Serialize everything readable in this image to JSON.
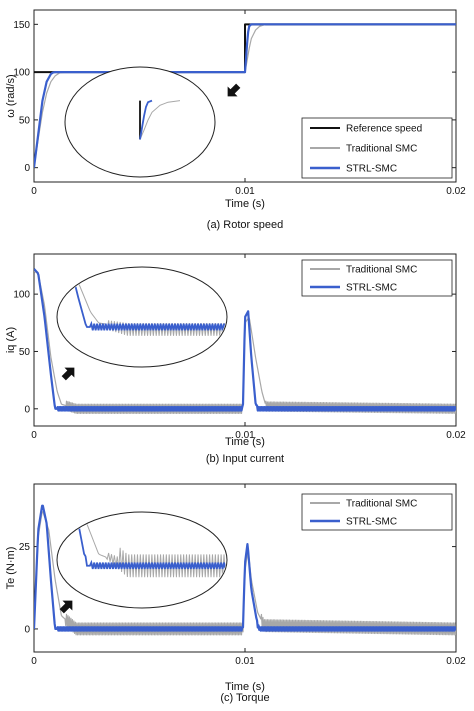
{
  "colors": {
    "reference": "#111111",
    "traditional": "#a8a8a8",
    "strl": "#3a5fcd",
    "axis": "#222222",
    "background": "#ffffff"
  },
  "icons": [
    "arrow-icon"
  ],
  "chart_data": [
    {
      "type": "line",
      "caption": "(a) Rotor speed",
      "xlabel": "Time (s)",
      "ylabel": "ω (rad/s)",
      "xlim": [
        0,
        0.02
      ],
      "ylim": [
        -15,
        165
      ],
      "xticks": [
        0,
        0.01,
        0.02
      ],
      "xtick_labels": [
        "0",
        "0.01",
        "0.02"
      ],
      "yticks": [
        0,
        50,
        100,
        150
      ],
      "ytick_labels": [
        "0",
        "50",
        "100",
        "150"
      ],
      "legend_position": "bottom-right",
      "series": [
        {
          "name": "Reference speed",
          "x": [
            0,
            0.01,
            0.01,
            0.02
          ],
          "y": [
            100,
            100,
            150,
            150
          ]
        },
        {
          "name": "Traditional SMC",
          "x": [
            0,
            0.0002,
            0.0004,
            0.0006,
            0.0008,
            0.001,
            0.0012,
            0.0015,
            0.002,
            0.01,
            0.0101,
            0.0102,
            0.0103,
            0.0105,
            0.0107,
            0.011,
            0.02
          ],
          "y": [
            0,
            30,
            58,
            78,
            90,
            96,
            99,
            100,
            100,
            100,
            112,
            125,
            135,
            144,
            148,
            150,
            150
          ]
        },
        {
          "name": "STRL-SMC",
          "x": [
            0,
            0.0002,
            0.0004,
            0.0006,
            0.0008,
            0.0009,
            0.001,
            0.002,
            0.01,
            0.01005,
            0.0101,
            0.01015,
            0.0102,
            0.0103,
            0.02
          ],
          "y": [
            0,
            35,
            70,
            90,
            98,
            99.5,
            100,
            100,
            100,
            115,
            130,
            142,
            148,
            150,
            150
          ]
        }
      ]
    },
    {
      "type": "line",
      "caption": "(b) Input current",
      "xlabel": "Time (s)",
      "ylabel": "iq (A)",
      "xlim": [
        0,
        0.02
      ],
      "ylim": [
        -15,
        135
      ],
      "xticks": [
        0,
        0.01,
        0.02
      ],
      "xtick_labels": [
        "0",
        "0.01",
        "0.02"
      ],
      "yticks": [
        0,
        50,
        100
      ],
      "ytick_labels": [
        "0",
        "50",
        "100"
      ],
      "legend_position": "top-right",
      "series": [
        {
          "name": "Traditional SMC",
          "x": [
            0,
            0.0002,
            0.0005,
            0.0008,
            0.0011,
            0.0013,
            0.002,
            0.0099,
            0.01,
            0.0102,
            0.0105,
            0.0108,
            0.011,
            0.02
          ],
          "y": [
            120,
            118,
            90,
            45,
            15,
            4,
            0,
            0,
            75,
            80,
            45,
            15,
            2,
            0
          ],
          "ripple": 4
        },
        {
          "name": "STRL-SMC",
          "x": [
            0,
            0.0002,
            0.0005,
            0.0008,
            0.001,
            0.002,
            0.0099,
            0.01,
            0.01015,
            0.0103,
            0.0105,
            0.0106,
            0.02
          ],
          "y": [
            122,
            118,
            80,
            30,
            0,
            0,
            0,
            80,
            85,
            45,
            5,
            0,
            0
          ],
          "ripple": 1.5
        }
      ]
    },
    {
      "type": "line",
      "caption": "(c) Torque",
      "xlabel": "Time (s)",
      "ylabel": "Te (N·m)",
      "xlim": [
        0,
        0.02
      ],
      "ylim": [
        -7,
        44
      ],
      "xticks": [
        0,
        0.01,
        0.02
      ],
      "xtick_labels": [
        "0",
        "0.01",
        "0.02"
      ],
      "yticks": [
        0,
        25
      ],
      "ytick_labels": [
        "0",
        "25"
      ],
      "legend_position": "top-right",
      "series": [
        {
          "name": "Traditional SMC",
          "x": [
            0,
            0.0002,
            0.0004,
            0.0007,
            0.001,
            0.0013,
            0.002,
            0.0099,
            0.01,
            0.01015,
            0.0103,
            0.0106,
            0.0109,
            0.02
          ],
          "y": [
            0,
            28,
            36,
            30,
            15,
            4,
            0,
            0,
            18,
            24,
            15,
            5,
            1,
            0
          ],
          "ripple": 1.8
        },
        {
          "name": "STRL-SMC",
          "x": [
            0,
            0.0002,
            0.0004,
            0.0006,
            0.0008,
            0.001,
            0.002,
            0.0099,
            0.01,
            0.01012,
            0.0103,
            0.0106,
            0.0107,
            0.02
          ],
          "y": [
            0,
            30,
            38,
            32,
            15,
            0,
            0,
            0,
            20,
            26,
            12,
            1,
            0,
            0
          ],
          "ripple": 0.5
        }
      ]
    }
  ]
}
